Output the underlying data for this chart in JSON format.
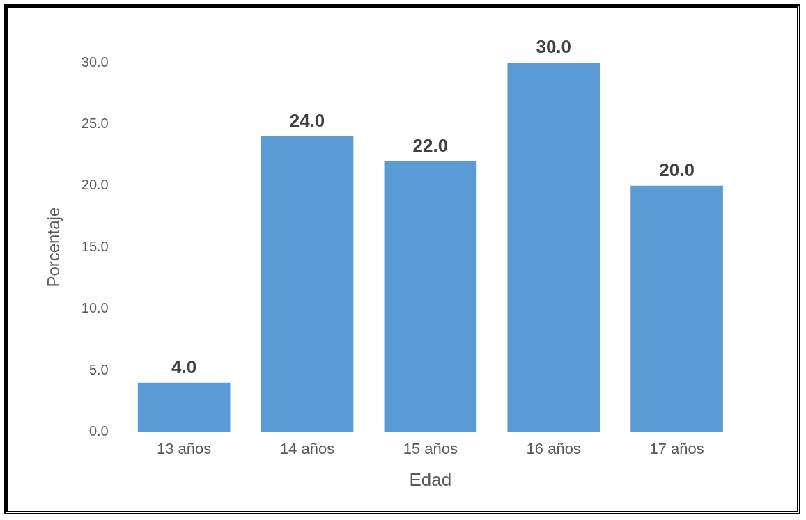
{
  "chart_data": {
    "type": "bar",
    "categories": [
      "13 años",
      "14 años",
      "15 años",
      "16 años",
      "17 años"
    ],
    "values": [
      4,
      24,
      22,
      30,
      20
    ],
    "value_labels": [
      "4.0",
      "24.0",
      "22.0",
      "30.0",
      "20.0"
    ],
    "color": "#5b9bd5",
    "xlabel": "Edad",
    "ylabel": "Porcentaje",
    "ylim": [
      0,
      30
    ],
    "yticks": [
      {
        "value": 0,
        "label": "0.0"
      },
      {
        "value": 5,
        "label": "5.0"
      },
      {
        "value": 10,
        "label": "10.0"
      },
      {
        "value": 15,
        "label": "15.0"
      },
      {
        "value": 20,
        "label": "20.0"
      },
      {
        "value": 25,
        "label": "25.0"
      },
      {
        "value": 30,
        "label": "30.0"
      }
    ],
    "grid": false,
    "legend": false
  }
}
